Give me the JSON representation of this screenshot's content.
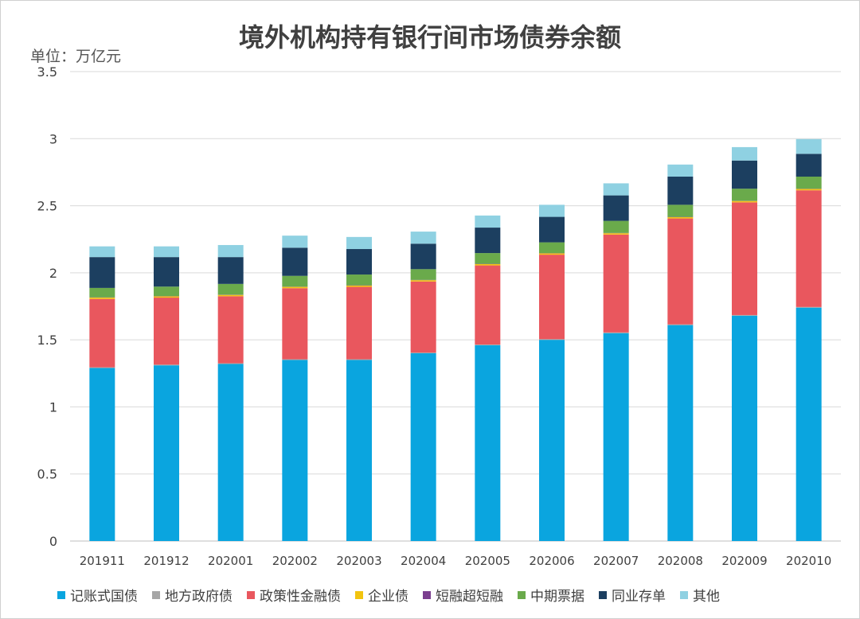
{
  "chart_data": {
    "type": "bar",
    "stacked": true,
    "title": "境外机构持有银行间市场债券余额",
    "unit_label": "单位：万亿元",
    "categories": [
      "201911",
      "201912",
      "202001",
      "202002",
      "202003",
      "202004",
      "202005",
      "202006",
      "202007",
      "202008",
      "202009",
      "202010"
    ],
    "ylim": [
      0,
      3.5
    ],
    "yticks": [
      0,
      0.5,
      1,
      1.5,
      2,
      2.5,
      3,
      3.5
    ],
    "ytick_labels": [
      "0",
      "0.5",
      "1",
      "1.5",
      "2",
      "2.5",
      "3",
      "3.5"
    ],
    "grid": true,
    "legend_position": "bottom",
    "series": [
      {
        "name": "记账式国债",
        "color": "#0aa5df",
        "values": [
          1.29,
          1.31,
          1.32,
          1.35,
          1.35,
          1.4,
          1.46,
          1.5,
          1.55,
          1.61,
          1.68,
          1.74
        ]
      },
      {
        "name": "地方政府债",
        "color": "#a6a6a6",
        "values": [
          0.005,
          0.005,
          0.005,
          0.005,
          0.005,
          0.005,
          0.005,
          0.005,
          0.005,
          0.005,
          0.005,
          0.005
        ]
      },
      {
        "name": "政策性金融债",
        "color": "#e9575e",
        "values": [
          0.51,
          0.5,
          0.5,
          0.53,
          0.54,
          0.53,
          0.59,
          0.63,
          0.73,
          0.79,
          0.84,
          0.87
        ]
      },
      {
        "name": "企业债",
        "color": "#f2c40f",
        "values": [
          0.01,
          0.01,
          0.01,
          0.01,
          0.01,
          0.01,
          0.01,
          0.01,
          0.01,
          0.01,
          0.01,
          0.01
        ]
      },
      {
        "name": "短融超短融",
        "color": "#7b3f8f",
        "values": [
          0.002,
          0.002,
          0.002,
          0.002,
          0.002,
          0.002,
          0.002,
          0.002,
          0.002,
          0.002,
          0.002,
          0.002
        ]
      },
      {
        "name": "中期票据",
        "color": "#6aaa4b",
        "values": [
          0.07,
          0.07,
          0.08,
          0.08,
          0.08,
          0.08,
          0.08,
          0.08,
          0.09,
          0.09,
          0.09,
          0.09
        ]
      },
      {
        "name": "同业存单",
        "color": "#1c3f60",
        "values": [
          0.23,
          0.22,
          0.2,
          0.21,
          0.19,
          0.19,
          0.19,
          0.19,
          0.19,
          0.21,
          0.21,
          0.17
        ]
      },
      {
        "name": "其他",
        "color": "#8fd1e2",
        "values": [
          0.08,
          0.08,
          0.09,
          0.09,
          0.09,
          0.09,
          0.09,
          0.09,
          0.09,
          0.09,
          0.1,
          0.11
        ]
      }
    ]
  }
}
